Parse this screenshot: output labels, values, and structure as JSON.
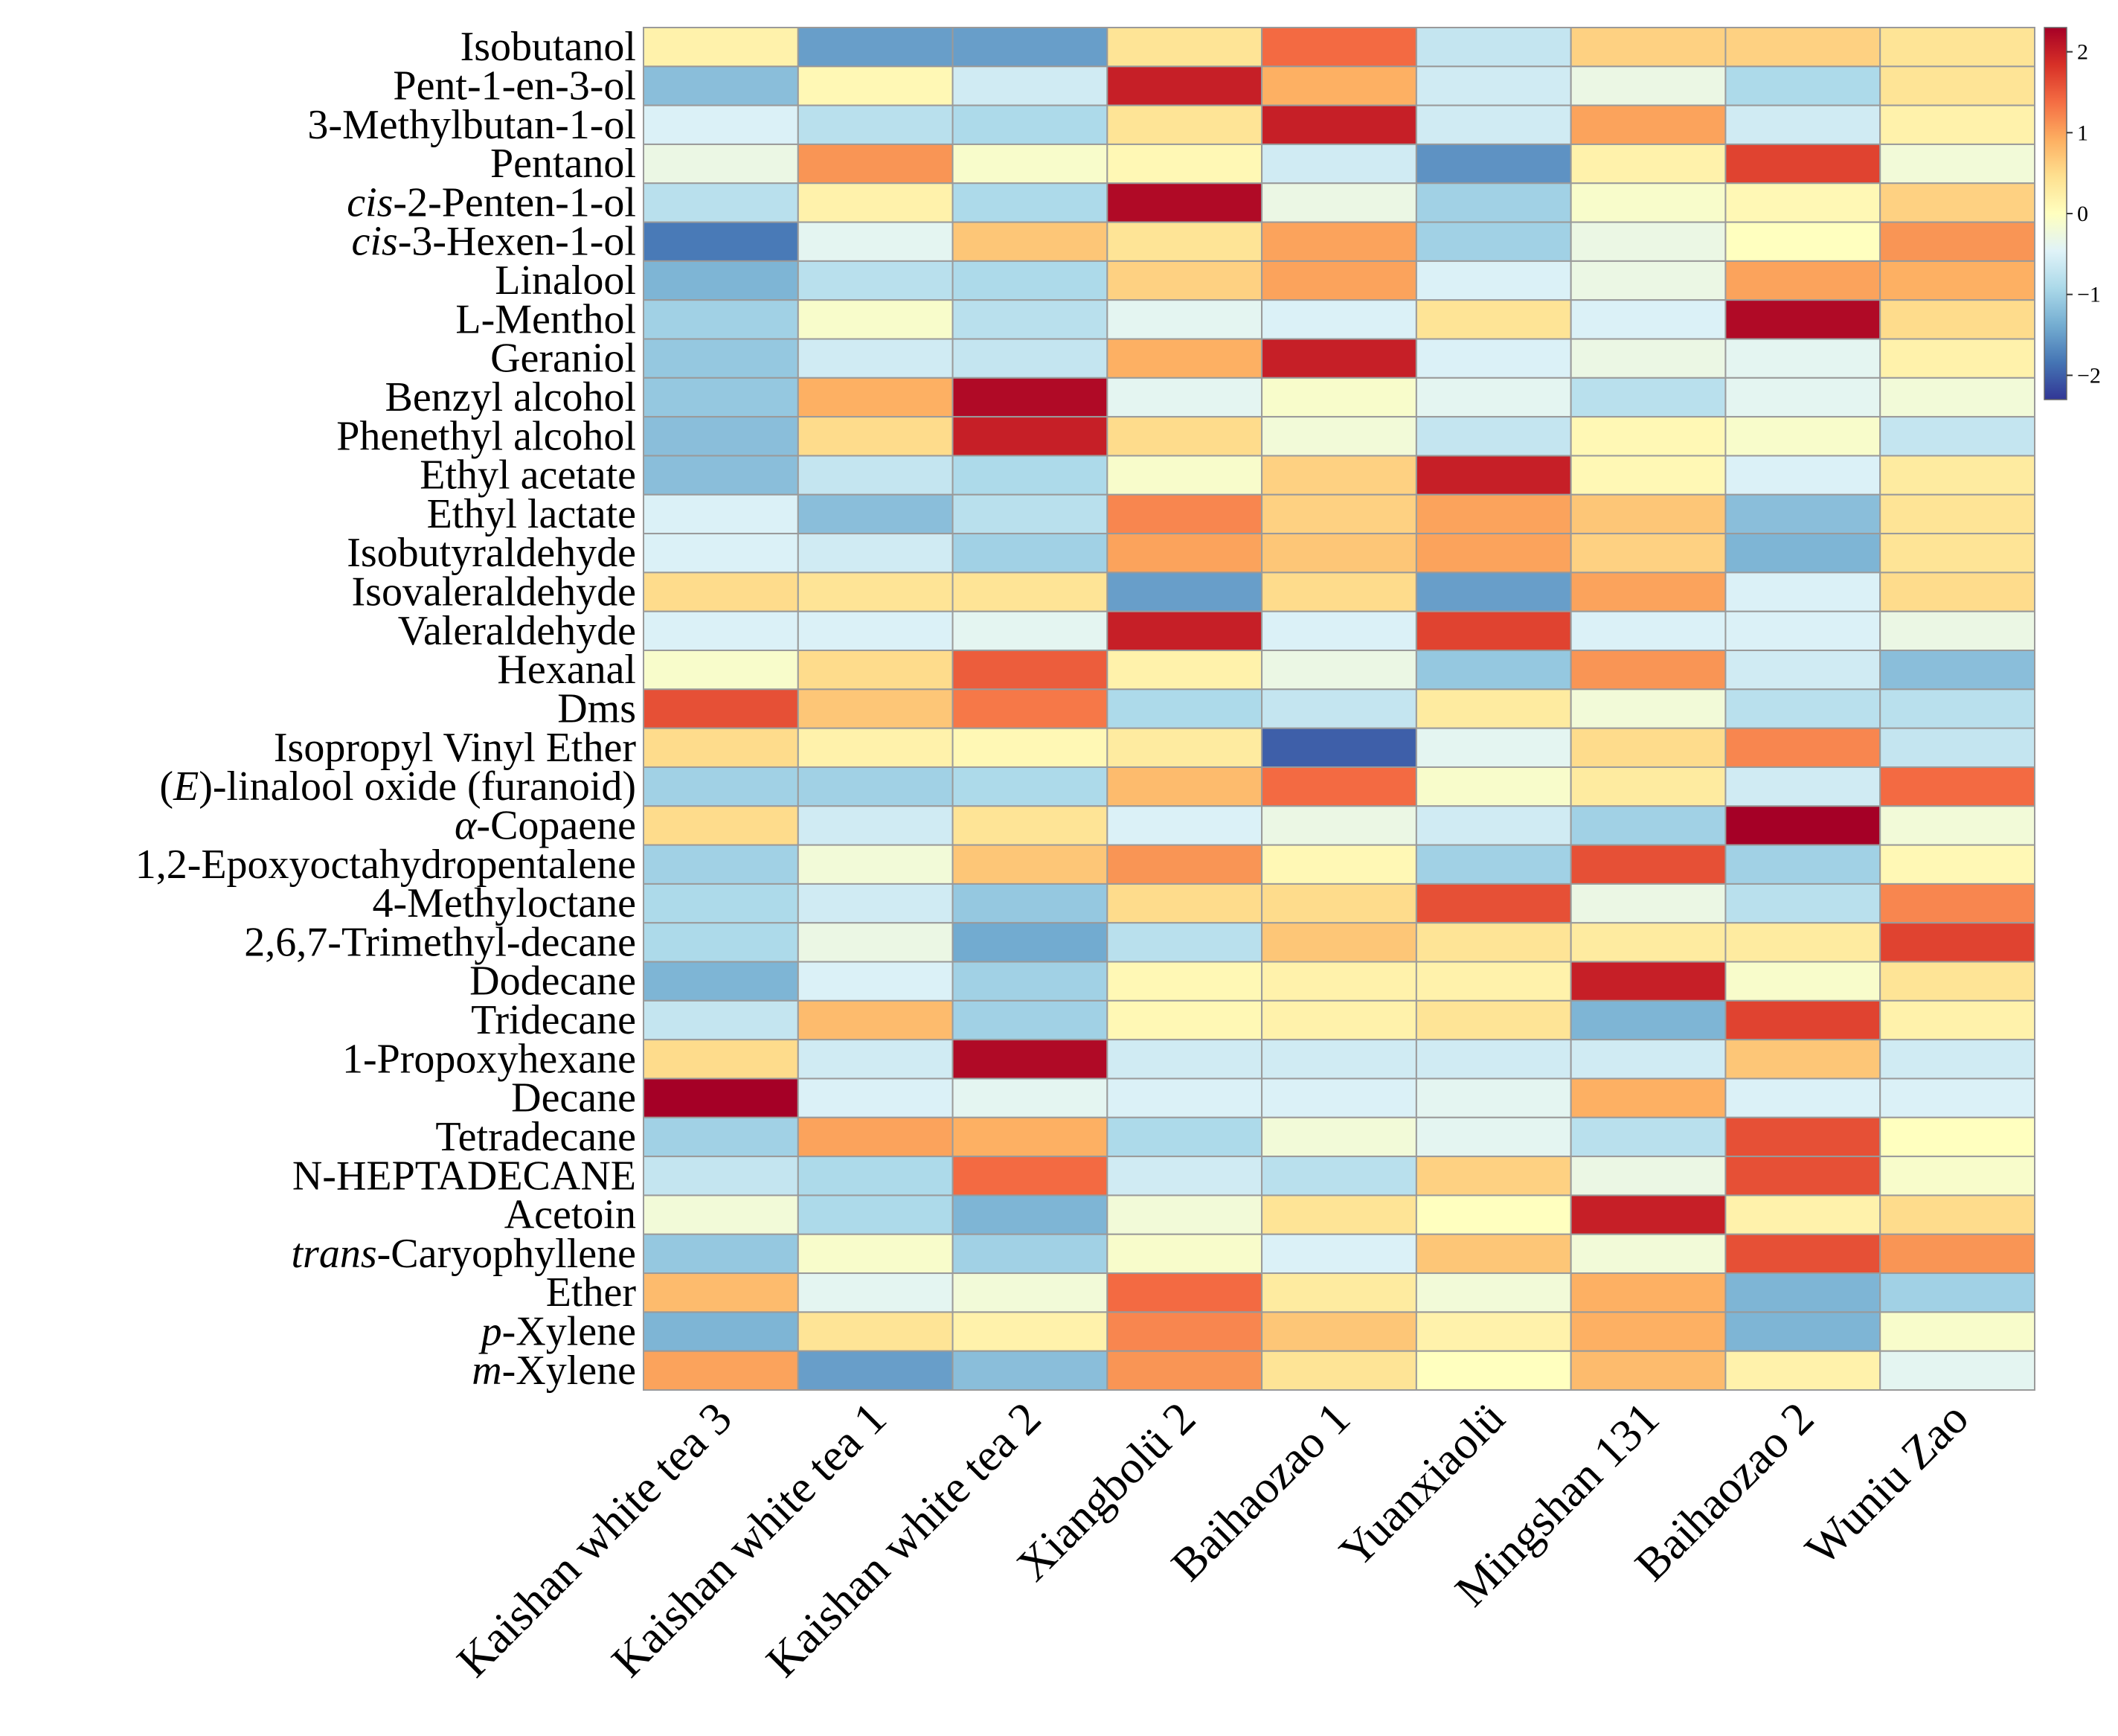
{
  "chart_data": {
    "type": "heatmap",
    "title": "",
    "xlabel": "",
    "ylabel": "",
    "columns": [
      "Kaishan white tea 3",
      "Kaishan white tea 1",
      "Kaishan white tea 2",
      "Xiangbolü 2",
      "Baihaozao 1",
      "Yuanxiaolü",
      "Mingshan 131",
      "Baihaozao 2",
      "Wuniu Zao"
    ],
    "rows": [
      {
        "label": "Isobutanol",
        "segments": [
          {
            "t": "Isobutanol"
          }
        ],
        "values": [
          0.2,
          -1.5,
          -1.5,
          0.4,
          1.4,
          -0.7,
          0.6,
          0.6,
          0.4
        ]
      },
      {
        "label": "Pent-1-en-3-ol",
        "segments": [
          {
            "t": "Pent-1-en-3-ol"
          }
        ],
        "values": [
          -1.2,
          0.1,
          -0.6,
          2.0,
          0.9,
          -0.6,
          -0.3,
          -0.9,
          0.4
        ]
      },
      {
        "label": "3-Methylbutan-1-ol",
        "segments": [
          {
            "t": "3-Methylbutan-1-ol"
          }
        ],
        "values": [
          -0.5,
          -0.8,
          -0.9,
          0.4,
          2.0,
          -0.6,
          1.0,
          -0.6,
          0.2
        ]
      },
      {
        "label": "Pentanol",
        "segments": [
          {
            "t": "Pentanol"
          }
        ],
        "values": [
          -0.3,
          1.1,
          -0.1,
          0.1,
          -0.6,
          -1.6,
          0.2,
          1.7,
          -0.2
        ]
      },
      {
        "label": "cis-2-Penten-1-ol",
        "segments": [
          {
            "t": "cis",
            "i": true
          },
          {
            "t": "-2-Penten-1-ol"
          }
        ],
        "values": [
          -0.8,
          0.2,
          -0.9,
          2.2,
          -0.3,
          -1.0,
          -0.1,
          0.1,
          0.6
        ]
      },
      {
        "label": "cis-3-Hexen-1-ol",
        "segments": [
          {
            "t": "cis",
            "i": true
          },
          {
            "t": "-3-Hexen-1-ol"
          }
        ],
        "values": [
          -1.8,
          -0.4,
          0.7,
          0.4,
          1.0,
          -1.0,
          -0.3,
          0.0,
          1.1
        ]
      },
      {
        "label": "Linalool",
        "segments": [
          {
            "t": "Linalool"
          }
        ],
        "values": [
          -1.3,
          -0.8,
          -0.9,
          0.6,
          1.0,
          -0.5,
          -0.3,
          1.0,
          0.9
        ]
      },
      {
        "label": "L-Menthol",
        "segments": [
          {
            "t": "L-Menthol"
          }
        ],
        "values": [
          -1.0,
          -0.1,
          -0.8,
          -0.4,
          -0.5,
          0.4,
          -0.5,
          2.2,
          0.5
        ]
      },
      {
        "label": "Geraniol",
        "segments": [
          {
            "t": "Geraniol"
          }
        ],
        "values": [
          -1.1,
          -0.6,
          -0.7,
          0.9,
          2.0,
          -0.5,
          -0.3,
          -0.4,
          0.2
        ]
      },
      {
        "label": "Benzyl alcohol",
        "segments": [
          {
            "t": "Benzyl alcohol"
          }
        ],
        "values": [
          -1.1,
          0.9,
          2.2,
          -0.4,
          -0.1,
          -0.4,
          -0.8,
          -0.4,
          -0.2
        ]
      },
      {
        "label": "Phenethyl alcohol",
        "segments": [
          {
            "t": "Phenethyl alcohol"
          }
        ],
        "values": [
          -1.2,
          0.5,
          2.0,
          0.5,
          -0.2,
          -0.7,
          0.1,
          -0.1,
          -0.7
        ]
      },
      {
        "label": "Ethyl acetate",
        "segments": [
          {
            "t": "Ethyl acetate"
          }
        ],
        "values": [
          -1.2,
          -0.7,
          -0.9,
          -0.1,
          0.6,
          2.0,
          0.1,
          -0.5,
          0.3
        ]
      },
      {
        "label": "Ethyl lactate",
        "segments": [
          {
            "t": "Ethyl lactate"
          }
        ],
        "values": [
          -0.5,
          -1.2,
          -0.8,
          1.2,
          0.6,
          1.0,
          0.7,
          -1.2,
          0.4
        ]
      },
      {
        "label": "Isobutyraldehyde",
        "segments": [
          {
            "t": "Isobutyraldehyde"
          }
        ],
        "values": [
          -0.5,
          -0.6,
          -1.0,
          1.0,
          0.7,
          1.0,
          0.6,
          -1.3,
          0.4
        ]
      },
      {
        "label": "Isovaleraldehyde",
        "segments": [
          {
            "t": "Isovaleraldehyde"
          }
        ],
        "values": [
          0.5,
          0.4,
          0.4,
          -1.5,
          0.5,
          -1.5,
          1.0,
          -0.5,
          0.5
        ]
      },
      {
        "label": "Valeraldehyde",
        "segments": [
          {
            "t": "Valeraldehyde"
          }
        ],
        "values": [
          -0.5,
          -0.5,
          -0.4,
          2.0,
          -0.5,
          1.7,
          -0.5,
          -0.5,
          -0.3
        ]
      },
      {
        "label": "Hexanal",
        "segments": [
          {
            "t": "Hexanal"
          }
        ],
        "values": [
          -0.1,
          0.5,
          1.5,
          0.2,
          -0.3,
          -1.1,
          1.1,
          -0.6,
          -1.2
        ]
      },
      {
        "label": "Dms",
        "segments": [
          {
            "t": "Dms"
          }
        ],
        "values": [
          1.6,
          0.7,
          1.3,
          -0.9,
          -0.7,
          0.3,
          -0.2,
          -0.8,
          -0.8
        ]
      },
      {
        "label": "Isopropyl Vinyl Ether",
        "segments": [
          {
            "t": "Isopropyl Vinyl Ether"
          }
        ],
        "values": [
          0.5,
          0.2,
          0.1,
          0.3,
          -2.0,
          -0.4,
          0.5,
          1.2,
          -0.7
        ]
      },
      {
        "label": "(E)-linalool oxide (furanoid)",
        "segments": [
          {
            "t": "("
          },
          {
            "t": "E",
            "i": true
          },
          {
            "t": ")-linalool oxide (furanoid)"
          }
        ],
        "values": [
          -1.0,
          -1.0,
          -0.9,
          0.8,
          1.4,
          -0.1,
          0.3,
          -0.6,
          1.4
        ]
      },
      {
        "label": "α-Copaene",
        "segments": [
          {
            "t": "α",
            "i": true
          },
          {
            "t": "-Copaene"
          }
        ],
        "values": [
          0.5,
          -0.6,
          0.4,
          -0.5,
          -0.3,
          -0.6,
          -1.0,
          2.3,
          -0.2
        ]
      },
      {
        "label": "1,2-Epoxyoctahydropentalene",
        "segments": [
          {
            "t": "1,2-Epoxyoctahydropentalene"
          }
        ],
        "values": [
          -1.0,
          -0.2,
          0.7,
          1.1,
          0.1,
          -1.0,
          1.6,
          -1.0,
          0.1
        ]
      },
      {
        "label": "4-Methyloctane",
        "segments": [
          {
            "t": "4-Methyloctane"
          }
        ],
        "values": [
          -0.9,
          -0.6,
          -1.1,
          0.5,
          0.5,
          1.6,
          -0.3,
          -0.8,
          1.2
        ]
      },
      {
        "label": "2,6,7-Trimethyl-decane",
        "segments": [
          {
            "t": "2,6,7-Trimethyl-decane"
          }
        ],
        "values": [
          -0.9,
          -0.3,
          -1.4,
          -0.8,
          0.7,
          0.4,
          0.3,
          0.3,
          1.7
        ]
      },
      {
        "label": "Dodecane",
        "segments": [
          {
            "t": "Dodecane"
          }
        ],
        "values": [
          -1.3,
          -0.5,
          -1.0,
          0.1,
          0.2,
          0.2,
          2.0,
          -0.1,
          0.4
        ]
      },
      {
        "label": "Tridecane",
        "segments": [
          {
            "t": "Tridecane"
          }
        ],
        "values": [
          -0.7,
          0.8,
          -1.0,
          0.1,
          0.2,
          0.4,
          -1.3,
          1.7,
          0.2
        ]
      },
      {
        "label": "1-Propoxyhexane",
        "segments": [
          {
            "t": "1-Propoxyhexane"
          }
        ],
        "values": [
          0.5,
          -0.6,
          2.2,
          -0.6,
          -0.6,
          -0.6,
          -0.6,
          0.7,
          -0.6
        ]
      },
      {
        "label": "Decane",
        "segments": [
          {
            "t": "Decane"
          }
        ],
        "values": [
          2.3,
          -0.5,
          -0.4,
          -0.5,
          -0.5,
          -0.4,
          0.9,
          -0.5,
          -0.5
        ]
      },
      {
        "label": "Tetradecane",
        "segments": [
          {
            "t": "Tetradecane"
          }
        ],
        "values": [
          -1.0,
          1.0,
          0.9,
          -0.9,
          -0.2,
          -0.4,
          -0.8,
          1.6,
          0.0
        ]
      },
      {
        "label": "N-HEPTADECANE",
        "segments": [
          {
            "t": "N-HEPTADECANE"
          }
        ],
        "values": [
          -0.7,
          -0.9,
          1.4,
          -0.6,
          -0.8,
          0.6,
          -0.3,
          1.6,
          -0.1
        ]
      },
      {
        "label": "Acetoin",
        "segments": [
          {
            "t": "Acetoin"
          }
        ],
        "values": [
          -0.2,
          -0.9,
          -1.3,
          -0.2,
          0.4,
          0.0,
          2.0,
          0.2,
          0.5
        ]
      },
      {
        "label": "trans-Caryophyllene",
        "segments": [
          {
            "t": "trans",
            "i": true
          },
          {
            "t": "-Caryophyllene"
          }
        ],
        "values": [
          -1.1,
          -0.1,
          -1.0,
          -0.1,
          -0.5,
          0.7,
          -0.2,
          1.6,
          1.1
        ]
      },
      {
        "label": "Ether",
        "segments": [
          {
            "t": "Ether"
          }
        ],
        "values": [
          0.8,
          -0.4,
          -0.2,
          1.4,
          0.3,
          -0.2,
          0.9,
          -1.3,
          -1.0
        ]
      },
      {
        "label": "p-Xylene",
        "segments": [
          {
            "t": "p",
            "i": true
          },
          {
            "t": "-Xylene"
          }
        ],
        "values": [
          -1.3,
          0.4,
          0.2,
          1.2,
          0.7,
          0.2,
          0.9,
          -1.3,
          -0.1
        ]
      },
      {
        "label": "m-Xylene",
        "segments": [
          {
            "t": "m",
            "i": true
          },
          {
            "t": "-Xylene"
          }
        ],
        "values": [
          1.0,
          -1.5,
          -1.2,
          1.1,
          0.4,
          0.0,
          0.8,
          0.2,
          -0.4
        ]
      }
    ],
    "colorbar": {
      "range": [
        -2.3,
        2.3
      ],
      "ticks": [
        {
          "v": 2,
          "label": "2"
        },
        {
          "v": 1,
          "label": "1"
        },
        {
          "v": 0,
          "label": "0"
        },
        {
          "v": -1,
          "label": "−1"
        },
        {
          "v": -2,
          "label": "−2"
        }
      ],
      "colors": [
        "#313695",
        "#4575b4",
        "#74add1",
        "#abd9e9",
        "#e0f3f8",
        "#ffffbf",
        "#fee090",
        "#fdae61",
        "#f46d43",
        "#d73027",
        "#a50026"
      ]
    },
    "grid": true,
    "legend_position": "top-right"
  }
}
